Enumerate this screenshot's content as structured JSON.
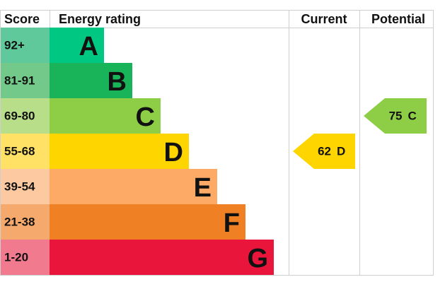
{
  "headers": {
    "score": "Score",
    "rating": "Energy rating",
    "current": "Current",
    "potential": "Potential"
  },
  "bands": [
    {
      "score": "92+",
      "letter": "A",
      "color": "#00c781",
      "score_color": "#5fc99c"
    },
    {
      "score": "81-91",
      "letter": "B",
      "color": "#19b459",
      "score_color": "#72c98a"
    },
    {
      "score": "69-80",
      "letter": "C",
      "color": "#8dce46",
      "score_color": "#b8de8a"
    },
    {
      "score": "55-68",
      "letter": "D",
      "color": "#ffd500",
      "score_color": "#ffe265"
    },
    {
      "score": "39-54",
      "letter": "E",
      "color": "#fcaa65",
      "score_color": "#fdc9a1"
    },
    {
      "score": "21-38",
      "letter": "F",
      "color": "#ef8023",
      "score_color": "#f5a96c"
    },
    {
      "score": "1-20",
      "letter": "G",
      "color": "#e9153b",
      "score_color": "#f27a8e"
    }
  ],
  "current": {
    "value": 62,
    "letter": "D"
  },
  "potential": {
    "value": 75,
    "letter": "C"
  }
}
